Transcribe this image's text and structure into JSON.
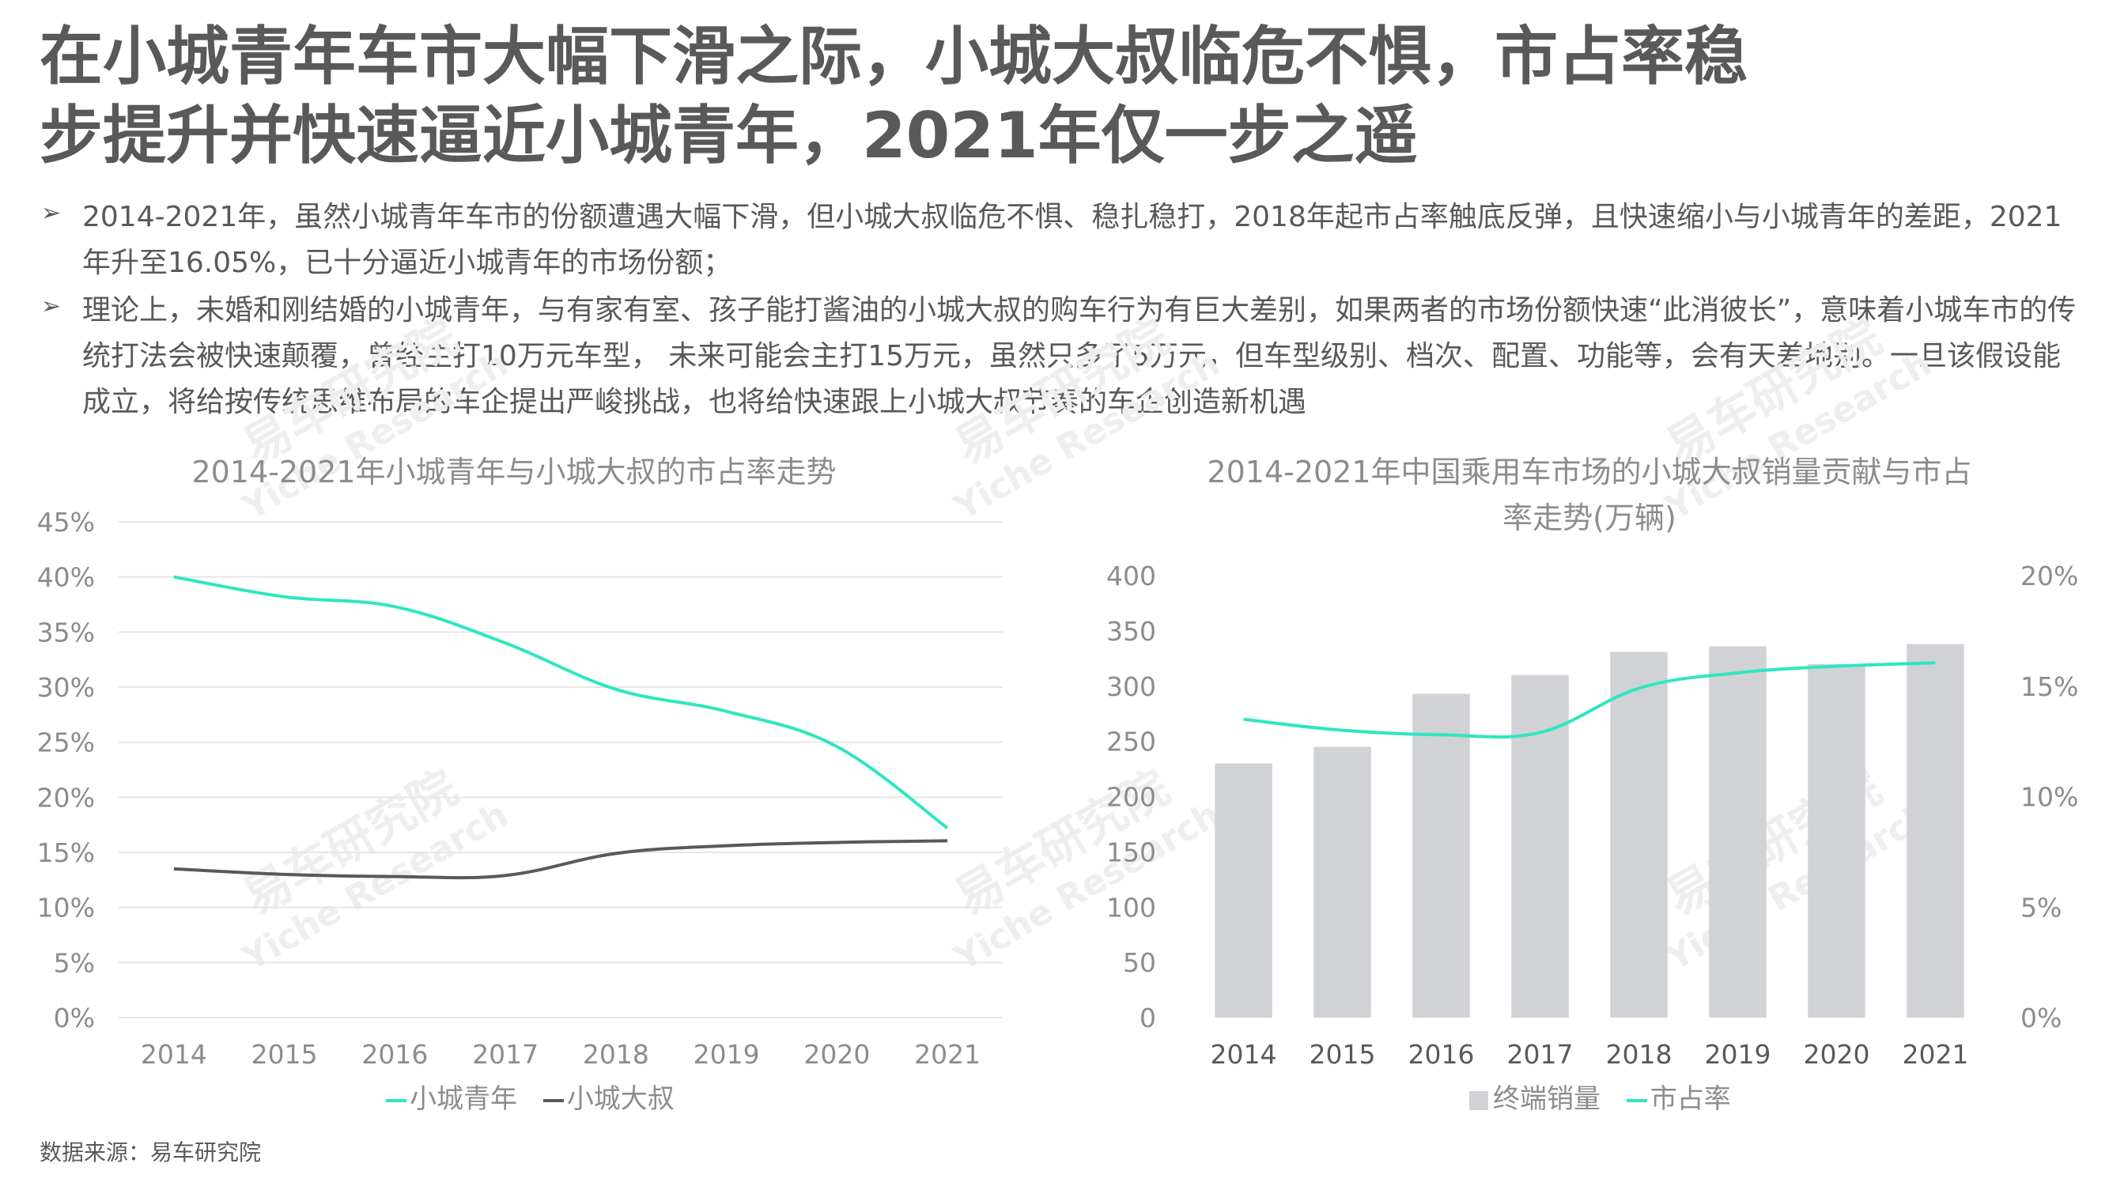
{
  "title": {
    "line1": "在小城青年车市大幅下滑之际，小城大叔临危不惧，市占率稳",
    "line2": "步提升并快速逼近小城青年，2021年仅一步之遥"
  },
  "bullets": [
    {
      "marker": "➢",
      "text": "2014-2021年，虽然小城青年车市的份额遭遇大幅下滑，但小城大叔临危不惧、稳扎稳打，2018年起市占率触底反弹，且快速缩小与小城青年的差距，2021年升至16.05%，已十分逼近小城青年的市场份额；"
    },
    {
      "marker": "➢",
      "text": "理论上，未婚和刚结婚的小城青年，与有家有室、孩子能打酱油的小城大叔的购车行为有巨大差别，如果两者的市场份额快速“此消彼长”，意味着小城车市的传统打法会被快速颠覆，曾经主打10万元车型， 未来可能会主打15万元，虽然只多了5万元，但车型级别、档次、配置、功能等，会有天差地别。一旦该假设能成立，将给按传统思维布局的车企提出严峻挑战，也将给快速跟上小城大叔节奏的车企创造新机遇"
    }
  ],
  "watermark": {
    "cn": "易车研究院",
    "en": "Yiche Research"
  },
  "source": "数据来源：易车研究院",
  "colors": {
    "teal": "#2ee6c1",
    "dark": "#595959",
    "bar": "#d0d2d5",
    "grid": "#e6e6e6"
  },
  "chart_data": [
    {
      "type": "line",
      "title": "2014-2021年小城青年与小城大叔的市占率走势",
      "categories": [
        "2014",
        "2015",
        "2016",
        "2017",
        "2018",
        "2019",
        "2020",
        "2021"
      ],
      "y_ticks": [
        "0%",
        "5%",
        "10%",
        "15%",
        "20%",
        "25%",
        "30%",
        "35%",
        "40%",
        "45%"
      ],
      "ylim": [
        0,
        45
      ],
      "series": [
        {
          "name": "小城青年",
          "color": "#2ee6c1",
          "values": [
            40.0,
            38.2,
            37.3,
            34.0,
            29.8,
            27.8,
            24.6,
            17.2
          ]
        },
        {
          "name": "小城大叔",
          "color": "#595959",
          "values": [
            13.5,
            13.0,
            12.8,
            12.9,
            14.9,
            15.6,
            15.9,
            16.05
          ]
        }
      ],
      "legend_position": "bottom"
    },
    {
      "type": "bar",
      "title": "2014-2021年中国乘用车市场的小城大叔销量贡献与市占率走势(万辆)",
      "categories": [
        "2014",
        "2015",
        "2016",
        "2017",
        "2018",
        "2019",
        "2020",
        "2021"
      ],
      "y_ticks": [
        "0",
        "50",
        "100",
        "150",
        "200",
        "250",
        "300",
        "350",
        "400"
      ],
      "ylim": [
        0,
        400
      ],
      "y2_ticks": [
        "0%",
        "5%",
        "10%",
        "15%",
        "20%"
      ],
      "y2lim": [
        0,
        20
      ],
      "series": [
        {
          "name": "终端销量",
          "type": "bar",
          "color": "#d0d2d5",
          "values": [
            230,
            245,
            293,
            310,
            331,
            336,
            320,
            338
          ]
        },
        {
          "name": "市占率",
          "type": "line",
          "axis": "right",
          "color": "#2ee6c1",
          "values": [
            13.5,
            13.0,
            12.8,
            12.9,
            14.9,
            15.6,
            15.9,
            16.05
          ]
        }
      ],
      "legend_position": "bottom"
    }
  ]
}
